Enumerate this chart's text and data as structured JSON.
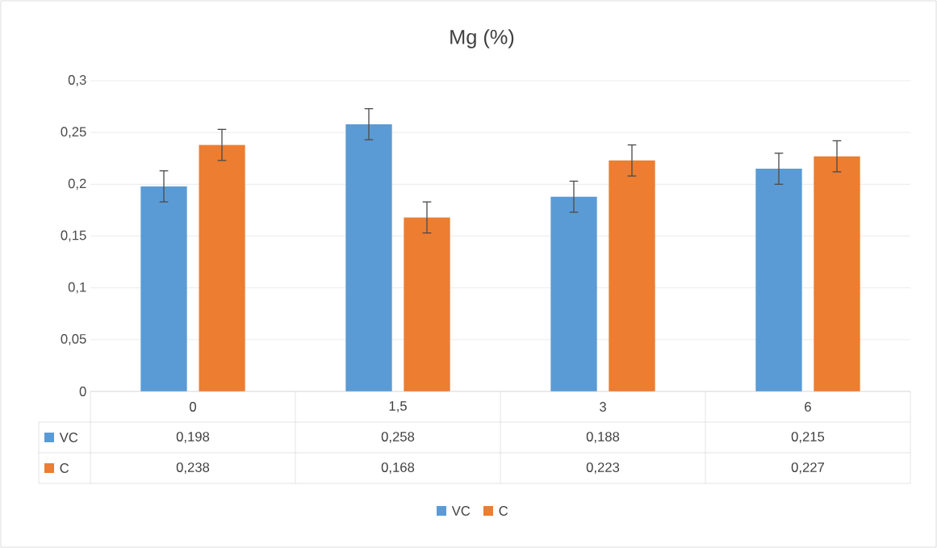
{
  "chart_data": {
    "type": "bar",
    "title": "Mg (%)",
    "categories": [
      "0",
      "1,5",
      "3",
      "6"
    ],
    "series": [
      {
        "name": "VC",
        "color": "#5b9bd5",
        "values": [
          0.198,
          0.258,
          0.188,
          0.215
        ],
        "errors": [
          0.015,
          0.015,
          0.015,
          0.015
        ],
        "value_labels": [
          "0,198",
          "0,258",
          "0,188",
          "0,215"
        ]
      },
      {
        "name": "C",
        "color": "#ed7d31",
        "values": [
          0.238,
          0.168,
          0.223,
          0.227
        ],
        "errors": [
          0.015,
          0.015,
          0.015,
          0.015
        ],
        "value_labels": [
          "0,238",
          "0,168",
          "0,223",
          "0,227"
        ]
      }
    ],
    "ylim": [
      0,
      0.3
    ],
    "yticks": [
      0,
      {
        "value": 0.05,
        "label": "0,05"
      },
      {
        "value": 0.1,
        "label": "0,1"
      },
      {
        "value": 0.15,
        "label": "0,15"
      },
      {
        "value": 0.2,
        "label": "0,2"
      },
      {
        "value": 0.25,
        "label": "0,25"
      },
      {
        "value": 0.3,
        "label": "0,3"
      }
    ],
    "grid": "y",
    "legend": "bottom"
  }
}
